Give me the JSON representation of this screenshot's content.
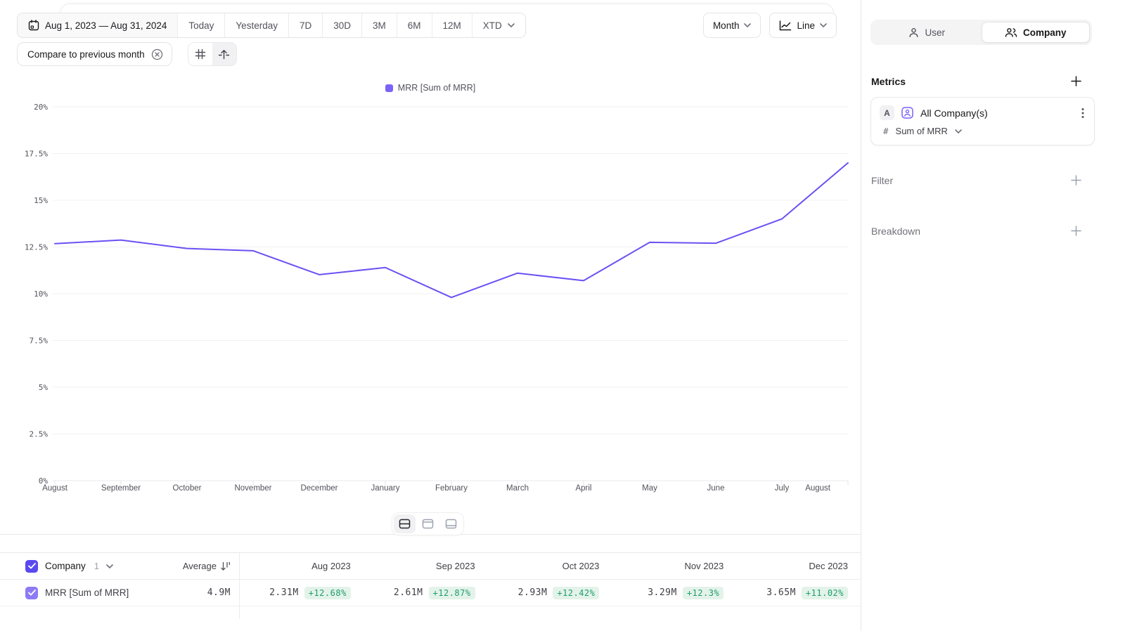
{
  "toolbar": {
    "date_range": "Aug 1, 2023 — Aug 31, 2024",
    "quick_ranges": [
      "Today",
      "Yesterday",
      "7D",
      "30D",
      "3M",
      "6M",
      "12M"
    ],
    "xtd_label": "XTD",
    "granularity_label": "Month",
    "chart_type_label": "Line",
    "compare_chip": "Compare to previous month"
  },
  "legend": {
    "label": "MRR [Sum of MRR]",
    "color": "#7c62f7"
  },
  "chart_data": {
    "type": "line",
    "title": "MRR [Sum of MRR] monthly % change vs previous month",
    "x": [
      "August",
      "September",
      "October",
      "November",
      "December",
      "January",
      "February",
      "March",
      "April",
      "May",
      "June",
      "July",
      "August"
    ],
    "series": [
      {
        "name": "MRR [Sum of MRR]",
        "values": [
          12.68,
          12.87,
          12.42,
          12.3,
          11.02,
          11.4,
          9.8,
          11.1,
          10.7,
          12.75,
          12.7,
          14.0,
          17.0
        ]
      }
    ],
    "xlabel": "",
    "ylabel": "",
    "ylim": [
      0,
      20
    ],
    "y_ticks": [
      "0%",
      "2.5%",
      "5%",
      "7.5%",
      "10%",
      "12.5%",
      "15%",
      "17.5%",
      "20%"
    ],
    "grid": true,
    "legend_position": "top",
    "line_color": "#6c50f4"
  },
  "sidebar": {
    "tabs": [
      {
        "label": "User"
      },
      {
        "label": "Company"
      }
    ],
    "active_tab": "Company",
    "metrics_title": "Metrics",
    "metric_card": {
      "badge": "A",
      "name": "All Company(s)",
      "agg_prefix": "#",
      "aggregation": "Sum of MRR"
    },
    "filter_label": "Filter",
    "breakdown_label": "Breakdown"
  },
  "table": {
    "entity_label": "Company",
    "entity_count": "1",
    "average_label": "Average",
    "row_name": "MRR [Sum of MRR]",
    "average_value": "4.9M",
    "months": [
      {
        "label": "Aug 2023",
        "value": "2.31M",
        "delta": "+12.68%"
      },
      {
        "label": "Sep 2023",
        "value": "2.61M",
        "delta": "+12.87%"
      },
      {
        "label": "Oct 2023",
        "value": "2.93M",
        "delta": "+12.42%"
      },
      {
        "label": "Nov 2023",
        "value": "3.29M",
        "delta": "+12.3%"
      },
      {
        "label": "Dec 2023",
        "value": "3.65M",
        "delta": "+11.02%"
      }
    ]
  },
  "colors": {
    "accent": "#6c50f4",
    "positive_text": "#1f9d6d",
    "positive_bg": "#e3f3ea",
    "checkbox_dark": "#5a49ee",
    "checkbox_light": "#8d7bf5"
  }
}
